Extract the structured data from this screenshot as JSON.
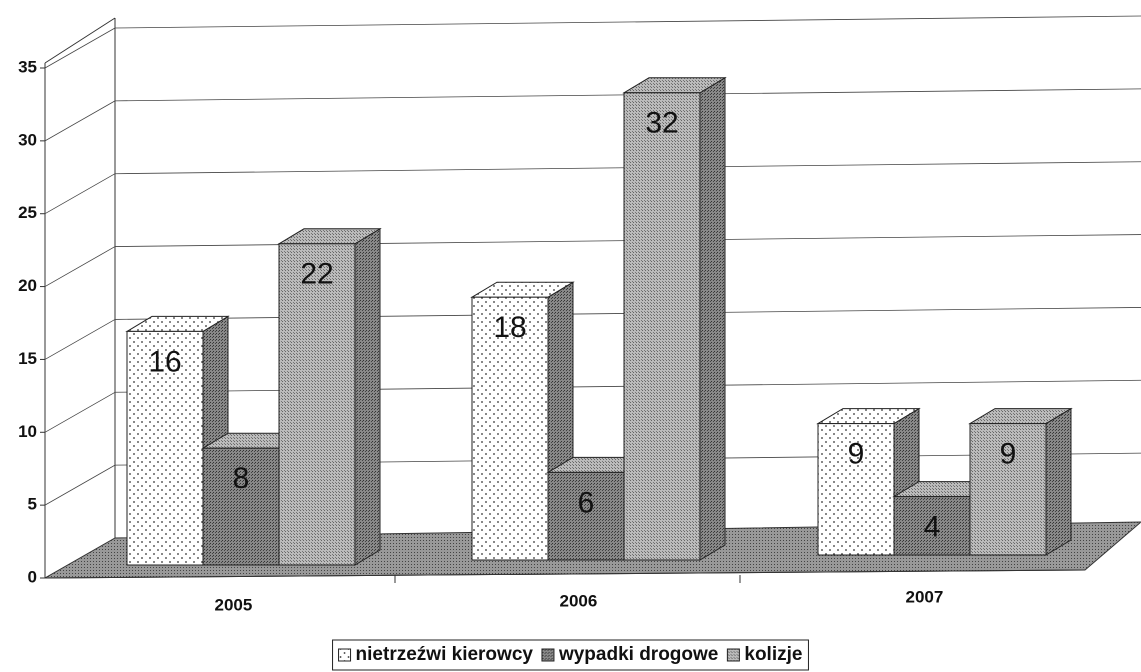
{
  "chart_data": {
    "type": "bar3d",
    "categories": [
      "2005",
      "2006",
      "2007"
    ],
    "series": [
      {
        "name": "nietrzeźwi kierowcy",
        "color": "#ffffff",
        "values": [
          16,
          18,
          9
        ]
      },
      {
        "name": "wypadki drogowe",
        "color": "#6e6e6e",
        "values": [
          8,
          6,
          4
        ]
      },
      {
        "name": "kolizje",
        "color": "#a9a9a9",
        "values": [
          22,
          32,
          9
        ]
      }
    ],
    "ylim": [
      0,
      35
    ],
    "yticks": [
      0,
      5,
      10,
      15,
      20,
      25,
      30,
      35
    ],
    "grid": true,
    "legend": "bottom"
  }
}
